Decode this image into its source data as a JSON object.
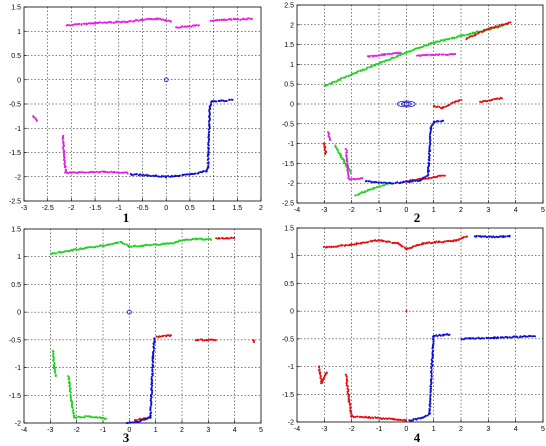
{
  "colors": {
    "magenta": "#e020e0",
    "blue": "#1010d0",
    "green": "#20d020",
    "red": "#e01010"
  },
  "chart_data": [
    {
      "type": "scatter",
      "label": "1",
      "xlim": [
        -3,
        2
      ],
      "ylim": [
        -2.5,
        1.5
      ],
      "xticks": [
        "-3",
        "-2.5",
        "-2",
        "-1.5",
        "-1",
        "-0.5",
        "0",
        "0.5",
        "1",
        "1.5",
        "2"
      ],
      "yticks": [
        "-2.5",
        "-2",
        "-1.5",
        "-1",
        "-0.5",
        "0",
        "0.5",
        "1",
        "1.5"
      ],
      "grid": true,
      "series": [
        {
          "color": "magenta",
          "segments": [
            [
              [
                -2.1,
                1.12
              ],
              [
                -1.5,
                1.17
              ],
              [
                -0.8,
                1.2
              ],
              [
                -0.2,
                1.26
              ],
              [
                0.1,
                1.21
              ]
            ],
            [
              [
                0.2,
                1.08
              ],
              [
                0.7,
                1.12
              ]
            ],
            [
              [
                0.95,
                1.22
              ],
              [
                1.8,
                1.26
              ]
            ],
            [
              [
                -2.8,
                -0.75
              ],
              [
                -2.72,
                -0.85
              ]
            ],
            [
              [
                -2.18,
                -1.15
              ],
              [
                -2.15,
                -1.6
              ],
              [
                -2.12,
                -1.92
              ],
              [
                -1.3,
                -1.9
              ],
              [
                -0.8,
                -1.92
              ]
            ]
          ]
        },
        {
          "color": "blue",
          "segments": [
            [
              [
                -0.75,
                -1.95
              ],
              [
                0.0,
                -2.0
              ],
              [
                0.55,
                -1.95
              ],
              [
                0.85,
                -1.88
              ],
              [
                0.88,
                -1.8
              ],
              [
                0.9,
                -1.2
              ],
              [
                0.92,
                -0.6
              ],
              [
                0.95,
                -0.45
              ],
              [
                1.4,
                -0.42
              ]
            ]
          ]
        },
        {
          "color": "blue",
          "points": [
            [
              0.0,
              0.0
            ]
          ],
          "circle": true
        }
      ]
    },
    {
      "type": "scatter",
      "label": "2",
      "xlim": [
        -4,
        5
      ],
      "ylim": [
        -2.5,
        2.5
      ],
      "xticks": [
        "-4",
        "-3",
        "-2",
        "-1",
        "0",
        "1",
        "2",
        "3",
        "4",
        "5"
      ],
      "yticks": [
        "-2.5",
        "-2",
        "-1.5",
        "-1",
        "-0.5",
        "0",
        "0.5",
        "1",
        "1.5",
        "2",
        "2.5"
      ],
      "grid": true,
      "series": [
        {
          "color": "green",
          "segments": [
            [
              [
                -3.0,
                0.45
              ],
              [
                -2.0,
                0.75
              ],
              [
                -1.0,
                1.02
              ],
              [
                0.0,
                1.3
              ],
              [
                1.0,
                1.55
              ],
              [
                2.0,
                1.72
              ],
              [
                3.0,
                1.88
              ],
              [
                3.5,
                1.98
              ]
            ],
            [
              [
                -2.6,
                -1.05
              ],
              [
                -2.4,
                -1.3
              ],
              [
                -2.2,
                -1.55
              ],
              [
                -2.0,
                -1.75
              ]
            ],
            [
              [
                -1.85,
                -2.3
              ],
              [
                -1.3,
                -2.15
              ],
              [
                -0.6,
                -2.0
              ]
            ]
          ]
        },
        {
          "color": "magenta",
          "segments": [
            [
              [
                -1.4,
                1.2
              ],
              [
                -0.8,
                1.25
              ],
              [
                -0.2,
                1.3
              ]
            ],
            [
              [
                0.4,
                1.22
              ],
              [
                1.0,
                1.24
              ],
              [
                1.8,
                1.26
              ]
            ],
            [
              [
                -2.85,
                -0.7
              ],
              [
                -2.8,
                -0.9
              ]
            ],
            [
              [
                -2.2,
                -1.15
              ],
              [
                -2.15,
                -1.6
              ],
              [
                -2.1,
                -1.9
              ],
              [
                -1.6,
                -1.88
              ]
            ]
          ]
        },
        {
          "color": "red",
          "segments": [
            [
              [
                2.2,
                1.65
              ],
              [
                3.0,
                1.9
              ],
              [
                3.8,
                2.05
              ]
            ],
            [
              [
                1.0,
                -0.05
              ],
              [
                1.3,
                -0.1
              ],
              [
                1.8,
                0.05
              ],
              [
                2.0,
                0.1
              ]
            ],
            [
              [
                2.7,
                0.05
              ],
              [
                3.5,
                0.15
              ]
            ],
            [
              [
                -3.0,
                -1.0
              ],
              [
                -2.95,
                -1.25
              ]
            ],
            [
              [
                0.0,
                -1.95
              ],
              [
                0.5,
                -1.9
              ],
              [
                1.0,
                -1.85
              ],
              [
                1.4,
                -1.8
              ]
            ]
          ]
        },
        {
          "color": "blue",
          "segments": [
            [
              [
                -1.5,
                -1.95
              ],
              [
                -0.6,
                -2.0
              ],
              [
                0.0,
                -1.97
              ],
              [
                0.5,
                -1.93
              ],
              [
                0.8,
                -1.8
              ],
              [
                0.85,
                -1.2
              ],
              [
                0.9,
                -0.6
              ],
              [
                1.0,
                -0.45
              ],
              [
                1.35,
                -0.42
              ]
            ]
          ]
        },
        {
          "color": "blue",
          "points": [
            [
              0.0,
              0.0
            ]
          ],
          "circle": true,
          "ellipse": true
        }
      ]
    },
    {
      "type": "scatter",
      "label": "3",
      "xlim": [
        -4,
        5
      ],
      "ylim": [
        -2,
        1.5
      ],
      "xticks": [
        "-4",
        "-3",
        "-2",
        "-1",
        "0",
        "1",
        "2",
        "3",
        "4",
        "5"
      ],
      "yticks": [
        "-2",
        "-1.5",
        "-1",
        "-0.5",
        "0",
        "0.5",
        "1",
        "1.5"
      ],
      "grid": true,
      "series": [
        {
          "color": "green",
          "segments": [
            [
              [
                -3.0,
                1.05
              ],
              [
                -2.0,
                1.13
              ],
              [
                -1.0,
                1.2
              ],
              [
                -0.3,
                1.26
              ],
              [
                0.0,
                1.18
              ],
              [
                0.5,
                1.2
              ],
              [
                1.0,
                1.22
              ],
              [
                1.6,
                1.24
              ],
              [
                2.0,
                1.3
              ],
              [
                2.6,
                1.32
              ],
              [
                3.1,
                1.31
              ]
            ],
            [
              [
                -2.9,
                -0.7
              ],
              [
                -2.85,
                -1.0
              ],
              [
                -2.8,
                -1.15
              ]
            ],
            [
              [
                -2.3,
                -1.15
              ],
              [
                -2.2,
                -1.6
              ],
              [
                -2.1,
                -1.9
              ],
              [
                -1.5,
                -1.88
              ],
              [
                -0.9,
                -1.92
              ]
            ]
          ]
        },
        {
          "color": "red",
          "segments": [
            [
              [
                3.3,
                1.33
              ],
              [
                4.0,
                1.34
              ]
            ],
            [
              [
                0.2,
                -1.95
              ],
              [
                0.8,
                -1.9
              ]
            ],
            [
              [
                1.05,
                -0.45
              ],
              [
                1.6,
                -0.42
              ]
            ],
            [
              [
                2.5,
                -0.5
              ],
              [
                3.3,
                -0.5
              ]
            ],
            [
              [
                4.7,
                -0.5
              ],
              [
                4.72,
                -0.55
              ]
            ]
          ]
        },
        {
          "color": "blue",
          "segments": [
            [
              [
                -0.1,
                -2.0
              ],
              [
                0.3,
                -1.98
              ],
              [
                0.8,
                -1.9
              ],
              [
                0.85,
                -1.4
              ],
              [
                0.9,
                -0.8
              ],
              [
                0.95,
                -0.48
              ]
            ]
          ]
        },
        {
          "color": "blue",
          "points": [
            [
              0.0,
              0.0
            ]
          ],
          "circle": true
        }
      ]
    },
    {
      "type": "scatter",
      "label": "4",
      "xlim": [
        -4,
        5
      ],
      "ylim": [
        -2,
        1.5
      ],
      "xticks": [
        "-4",
        "-3",
        "-2",
        "-1",
        "0",
        "1",
        "2",
        "3",
        "4",
        "5"
      ],
      "yticks": [
        "-2",
        "-1.5",
        "-1",
        "-0.5",
        "0",
        "0.5",
        "1",
        "1.5"
      ],
      "grid": true,
      "series": [
        {
          "color": "red",
          "segments": [
            [
              [
                -3.0,
                1.15
              ],
              [
                -2.0,
                1.2
              ],
              [
                -1.0,
                1.28
              ],
              [
                -0.3,
                1.22
              ],
              [
                0.0,
                1.12
              ],
              [
                0.6,
                1.22
              ],
              [
                1.2,
                1.25
              ],
              [
                1.8,
                1.27
              ],
              [
                2.2,
                1.35
              ]
            ],
            [
              [
                -3.2,
                -1.0
              ],
              [
                -3.1,
                -1.3
              ],
              [
                -2.9,
                -1.1
              ]
            ],
            [
              [
                -2.2,
                -1.15
              ],
              [
                -2.1,
                -1.6
              ],
              [
                -2.0,
                -1.9
              ],
              [
                -1.3,
                -1.92
              ],
              [
                -0.5,
                -1.95
              ],
              [
                0.0,
                -1.97
              ]
            ],
            [
              [
                0.0,
                0.0
              ]
            ]
          ]
        },
        {
          "color": "blue",
          "segments": [
            [
              [
                2.5,
                1.35
              ],
              [
                3.2,
                1.34
              ],
              [
                3.8,
                1.35
              ]
            ],
            [
              [
                0.1,
                -1.98
              ],
              [
                0.6,
                -1.92
              ],
              [
                0.85,
                -1.85
              ],
              [
                0.9,
                -1.3
              ],
              [
                0.95,
                -0.8
              ],
              [
                1.0,
                -0.45
              ],
              [
                1.6,
                -0.42
              ]
            ],
            [
              [
                2.0,
                -0.5
              ],
              [
                3.2,
                -0.48
              ],
              [
                4.7,
                -0.45
              ]
            ]
          ]
        }
      ]
    }
  ]
}
